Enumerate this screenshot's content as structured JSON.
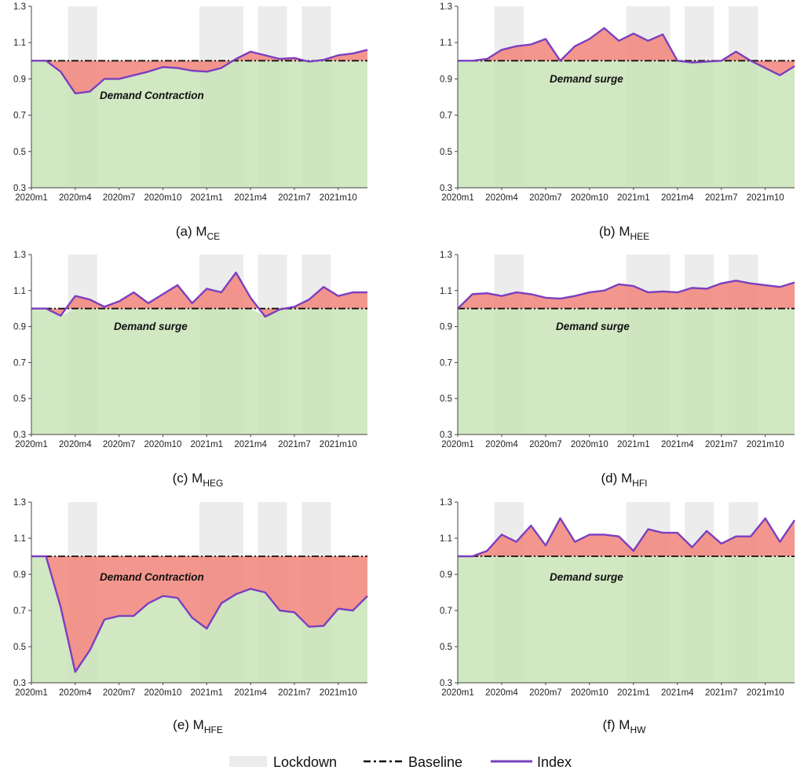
{
  "figure": {
    "legend": {
      "lockdown": "Lockdown",
      "baseline": "Baseline",
      "index": "Index"
    },
    "colors": {
      "above": "#f28b82",
      "below": "#c7e3b6",
      "index_line": "#7b3fbf",
      "lockdown_shade": "#ececec",
      "baseline_line": "#111111"
    }
  },
  "chart_data": [
    {
      "type": "area",
      "caption_prefix": "(a) M",
      "caption_sub": "CE",
      "annotation": "Demand  Contraction",
      "baseline": 1.0,
      "ylim": [
        0.3,
        1.3
      ],
      "yticks": [
        "0.3",
        "0.5",
        "0.7",
        "0.9",
        "1.1",
        "1.3"
      ],
      "xticks": [
        "2020m1",
        "2020m4",
        "2020m7",
        "2020m10",
        "2021m1",
        "2021m4",
        "2021m7",
        "2021m10"
      ],
      "lockdown_periods": [
        [
          4,
          5
        ],
        [
          13,
          15
        ],
        [
          17,
          18
        ],
        [
          20,
          21
        ]
      ],
      "x_count": 24,
      "values": [
        1.0,
        1.0,
        0.94,
        0.82,
        0.83,
        0.9,
        0.9,
        0.92,
        0.94,
        0.965,
        0.96,
        0.945,
        0.94,
        0.96,
        1.01,
        1.05,
        1.03,
        1.01,
        1.015,
        0.995,
        1.005,
        1.03,
        1.04,
        1.06
      ]
    },
    {
      "type": "area",
      "caption_prefix": "(b) M",
      "caption_sub": "HEE",
      "annotation": "Demand surge",
      "baseline": 1.0,
      "ylim": [
        0.3,
        1.3
      ],
      "yticks": [
        "0.3",
        "0.5",
        "0.7",
        "0.9",
        "1.1",
        "1.3"
      ],
      "xticks": [
        "2020m1",
        "2020m4",
        "2020m7",
        "2020m10",
        "2021m1",
        "2021m4",
        "2021m7",
        "2021m10"
      ],
      "lockdown_periods": [
        [
          4,
          5
        ],
        [
          13,
          15
        ],
        [
          17,
          18
        ],
        [
          20,
          21
        ]
      ],
      "x_count": 24,
      "values": [
        1.0,
        1.0,
        1.01,
        1.06,
        1.08,
        1.09,
        1.12,
        1.0,
        1.08,
        1.12,
        1.18,
        1.11,
        1.15,
        1.11,
        1.145,
        1.0,
        0.99,
        0.995,
        1.0,
        1.05,
        1.0,
        0.96,
        0.92,
        0.97
      ]
    },
    {
      "type": "area",
      "caption_prefix": "(c) M",
      "caption_sub": "HEG",
      "annotation": "Demand surge",
      "baseline": 1.0,
      "ylim": [
        0.3,
        1.3
      ],
      "yticks": [
        "0.3",
        "0.5",
        "0.7",
        "0.9",
        "1.1",
        "1.3"
      ],
      "xticks": [
        "2020m1",
        "2020m4",
        "2020m7",
        "2020m10",
        "2021m1",
        "2021m4",
        "2021m7",
        "2021m10"
      ],
      "lockdown_periods": [
        [
          4,
          5
        ],
        [
          13,
          15
        ],
        [
          17,
          18
        ],
        [
          20,
          21
        ]
      ],
      "x_count": 24,
      "values": [
        1.0,
        1.0,
        0.96,
        1.07,
        1.05,
        1.01,
        1.04,
        1.09,
        1.03,
        1.08,
        1.13,
        1.03,
        1.11,
        1.09,
        1.2,
        1.06,
        0.955,
        0.995,
        1.01,
        1.05,
        1.12,
        1.07,
        1.09,
        1.09
      ]
    },
    {
      "type": "area",
      "caption_prefix": "(d) M",
      "caption_sub": "HFI",
      "annotation": "Demand surge",
      "baseline": 1.0,
      "ylim": [
        0.3,
        1.3
      ],
      "yticks": [
        "0.3",
        "0.5",
        "0.7",
        "0.9",
        "1.1",
        "1.3"
      ],
      "xticks": [
        "2020m1",
        "2020m4",
        "2020m7",
        "2020m10",
        "2021m1",
        "2021m4",
        "2021m7",
        "2021m10"
      ],
      "lockdown_periods": [
        [
          4,
          5
        ],
        [
          13,
          15
        ],
        [
          17,
          18
        ],
        [
          20,
          21
        ]
      ],
      "x_count": 24,
      "values": [
        1.0,
        1.08,
        1.085,
        1.07,
        1.09,
        1.08,
        1.06,
        1.055,
        1.07,
        1.09,
        1.1,
        1.135,
        1.125,
        1.09,
        1.095,
        1.09,
        1.115,
        1.11,
        1.14,
        1.155,
        1.14,
        1.13,
        1.12,
        1.145
      ]
    },
    {
      "type": "area",
      "caption_prefix": "(e) M",
      "caption_sub": "HFE",
      "annotation": "Demand  Contraction",
      "baseline": 1.0,
      "ylim": [
        0.3,
        1.3
      ],
      "yticks": [
        "0.3",
        "0.5",
        "0.7",
        "0.9",
        "1.1",
        "1.3"
      ],
      "xticks": [
        "2020m1",
        "2020m4",
        "2020m7",
        "2020m10",
        "2021m1",
        "2021m4",
        "2021m7",
        "2021m10"
      ],
      "lockdown_periods": [
        [
          4,
          5
        ],
        [
          13,
          15
        ],
        [
          17,
          18
        ],
        [
          20,
          21
        ]
      ],
      "x_count": 24,
      "values": [
        1.0,
        1.0,
        0.72,
        0.36,
        0.48,
        0.65,
        0.67,
        0.67,
        0.74,
        0.78,
        0.77,
        0.66,
        0.6,
        0.74,
        0.79,
        0.82,
        0.8,
        0.7,
        0.69,
        0.61,
        0.615,
        0.71,
        0.7,
        0.78
      ]
    },
    {
      "type": "area",
      "caption_prefix": "(f) M",
      "caption_sub": "HW",
      "annotation": "Demand surge",
      "baseline": 1.0,
      "ylim": [
        0.3,
        1.3
      ],
      "yticks": [
        "0.3",
        "0.5",
        "0.7",
        "0.9",
        "1.1",
        "1.3"
      ],
      "xticks": [
        "2020m1",
        "2020m4",
        "2020m7",
        "2020m10",
        "2021m1",
        "2021m4",
        "2021m7",
        "2021m10"
      ],
      "lockdown_periods": [
        [
          4,
          5
        ],
        [
          13,
          15
        ],
        [
          17,
          18
        ],
        [
          20,
          21
        ]
      ],
      "x_count": 24,
      "values": [
        1.0,
        1.0,
        1.03,
        1.12,
        1.08,
        1.17,
        1.06,
        1.21,
        1.08,
        1.12,
        1.12,
        1.11,
        1.03,
        1.15,
        1.13,
        1.13,
        1.05,
        1.14,
        1.07,
        1.11,
        1.11,
        1.21,
        1.08,
        1.2
      ]
    }
  ]
}
